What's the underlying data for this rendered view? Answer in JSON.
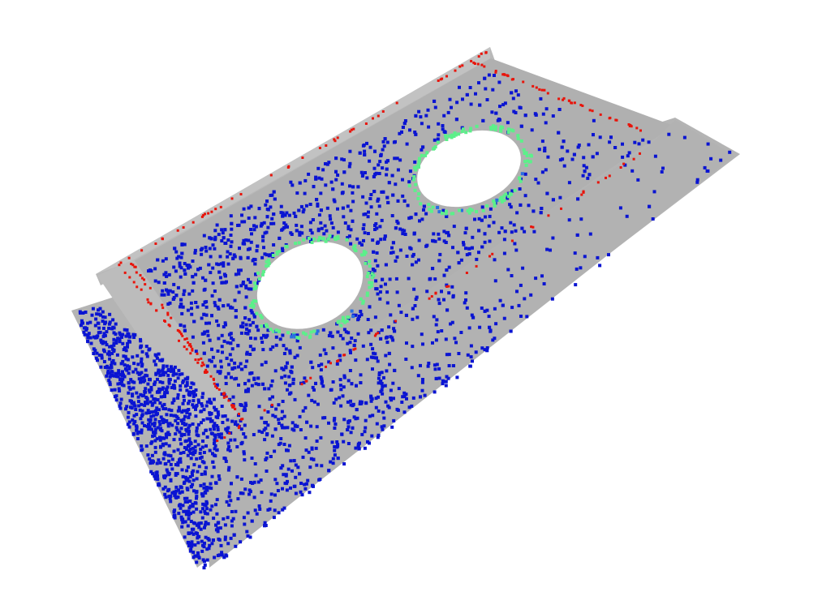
{
  "scene": {
    "background": "#ffffff",
    "part_color": "#b4b4b4",
    "part_shadow_color": "#9e9e9e",
    "points": {
      "flat_surface": {
        "color": "#0a14d2",
        "label": "plane"
      },
      "hole_edge": {
        "color": "#5cf08a",
        "label": "cylinder"
      },
      "transition": {
        "color": "#2a6ee0",
        "label": "transition"
      },
      "sharp_edge": {
        "color": "#e8140a",
        "label": "edge"
      }
    },
    "holes": 2
  }
}
